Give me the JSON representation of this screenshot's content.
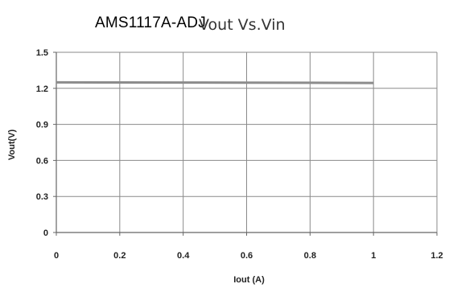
{
  "chart_data": {
    "type": "line",
    "title_part_1": "AMS1117A-ADJ",
    "title_part_2": "Vout Vs.Vin",
    "xlabel": "Iout (A)",
    "ylabel": "Vout(V)",
    "xlim": [
      0,
      1.2
    ],
    "ylim": [
      0,
      1.5
    ],
    "x_ticks": [
      "0",
      "0.2",
      "0.4",
      "0.6",
      "0.8",
      "1",
      "1.2"
    ],
    "y_ticks": [
      "0",
      "0.3",
      "0.6",
      "0.9",
      "1.2",
      "1.5"
    ],
    "grid": true,
    "series": [
      {
        "x": [
          0,
          0.2,
          0.4,
          0.6,
          0.8,
          1.0
        ],
        "y": [
          1.25,
          1.249,
          1.248,
          1.247,
          1.246,
          1.245
        ],
        "color": "#8c8c8c"
      }
    ]
  }
}
